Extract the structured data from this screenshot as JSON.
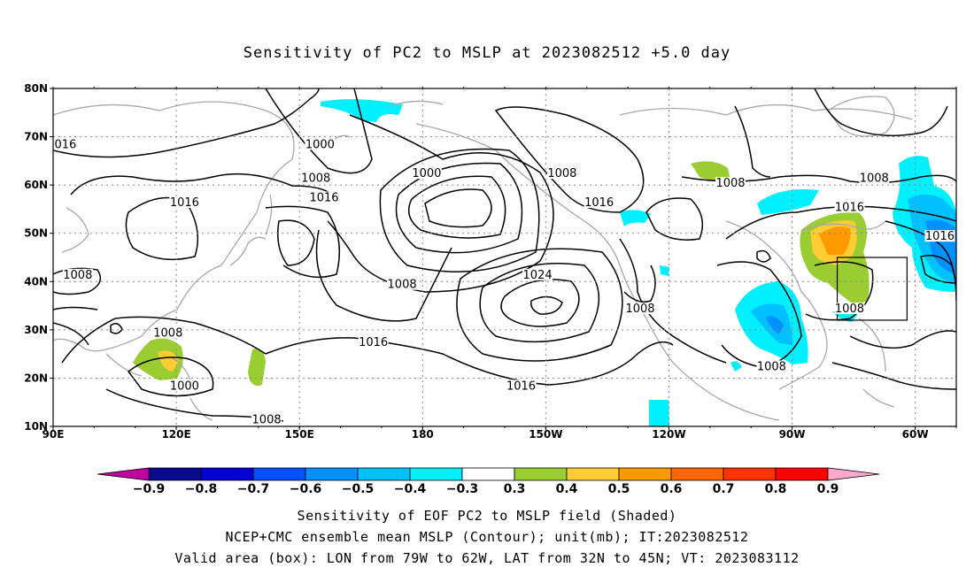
{
  "title": "Sensitivity of PC2 to MSLP at 2023082512 +5.0 day",
  "map": {
    "lat_labels": [
      "80N",
      "70N",
      "60N",
      "50N",
      "40N",
      "30N",
      "20N",
      "10N"
    ],
    "lon_labels": [
      "90E",
      "120E",
      "150E",
      "180",
      "150W",
      "120W",
      "90W",
      "60W"
    ],
    "extent": {
      "lon_min": 90,
      "lon_max": 310,
      "lat_min": 10,
      "lat_max": 80
    },
    "valid_box": {
      "lon_min": 281,
      "lon_max": 298,
      "lat_min": 32,
      "lat_max": 45
    },
    "contour_labels": [
      {
        "text": "1000",
        "lon": 155,
        "lat": 68
      },
      {
        "text": "1008",
        "lon": 154,
        "lat": 61
      },
      {
        "text": "1016",
        "lon": 156,
        "lat": 57
      },
      {
        "text": "1016",
        "lon": 122,
        "lat": 56
      },
      {
        "text": "1000",
        "lon": 181,
        "lat": 62
      },
      {
        "text": "1008",
        "lon": 214,
        "lat": 62
      },
      {
        "text": "1016",
        "lon": 223,
        "lat": 56
      },
      {
        "text": "1008",
        "lon": 255,
        "lat": 60
      },
      {
        "text": "1008",
        "lon": 290,
        "lat": 61
      },
      {
        "text": "1016",
        "lon": 284,
        "lat": 55
      },
      {
        "text": "1016",
        "lon": 306,
        "lat": 49
      },
      {
        "text": "1024",
        "lon": 208,
        "lat": 41
      },
      {
        "text": "1008",
        "lon": 175,
        "lat": 39
      },
      {
        "text": "1016",
        "lon": 168,
        "lat": 27
      },
      {
        "text": "1016",
        "lon": 204,
        "lat": 18
      },
      {
        "text": "1008",
        "lon": 233,
        "lat": 34
      },
      {
        "text": "1008",
        "lon": 284,
        "lat": 34
      },
      {
        "text": "1008",
        "lon": 265,
        "lat": 22
      },
      {
        "text": "1008",
        "lon": 118,
        "lat": 29
      },
      {
        "text": "1000",
        "lon": 122,
        "lat": 18
      },
      {
        "text": "1008",
        "lon": 142,
        "lat": 11
      },
      {
        "text": "1008",
        "lon": 96,
        "lat": 41
      },
      {
        "text": "016",
        "lon": 93,
        "lat": 68
      }
    ]
  },
  "colorbar": {
    "labels": [
      "-0.9",
      "-0.8",
      "-0.7",
      "-0.6",
      "-0.5",
      "-0.4",
      "-0.3",
      "0.3",
      "0.4",
      "0.5",
      "0.6",
      "0.7",
      "0.8",
      "0.9"
    ],
    "colors": [
      "#0a0a8c",
      "#0000d2",
      "#0050ff",
      "#0090ff",
      "#00c0ff",
      "#00f0ff",
      "#ffffff",
      "#9acd32",
      "#ffcc33",
      "#ff9900",
      "#ff6600",
      "#ff3300",
      "#ff0000"
    ],
    "low_arrow_color": "#c000a0",
    "high_arrow_color": "#ffaacc"
  },
  "footer": {
    "line1": "Sensitivity of EOF PC2 to MSLP field (Shaded)",
    "line2": "NCEP+CMC ensemble mean MSLP (Contour); unit(mb); IT:2023082512",
    "line3": "Valid area (box): LON from 79W to 62W, LAT from 32N to 45N; VT: 2023083112"
  }
}
